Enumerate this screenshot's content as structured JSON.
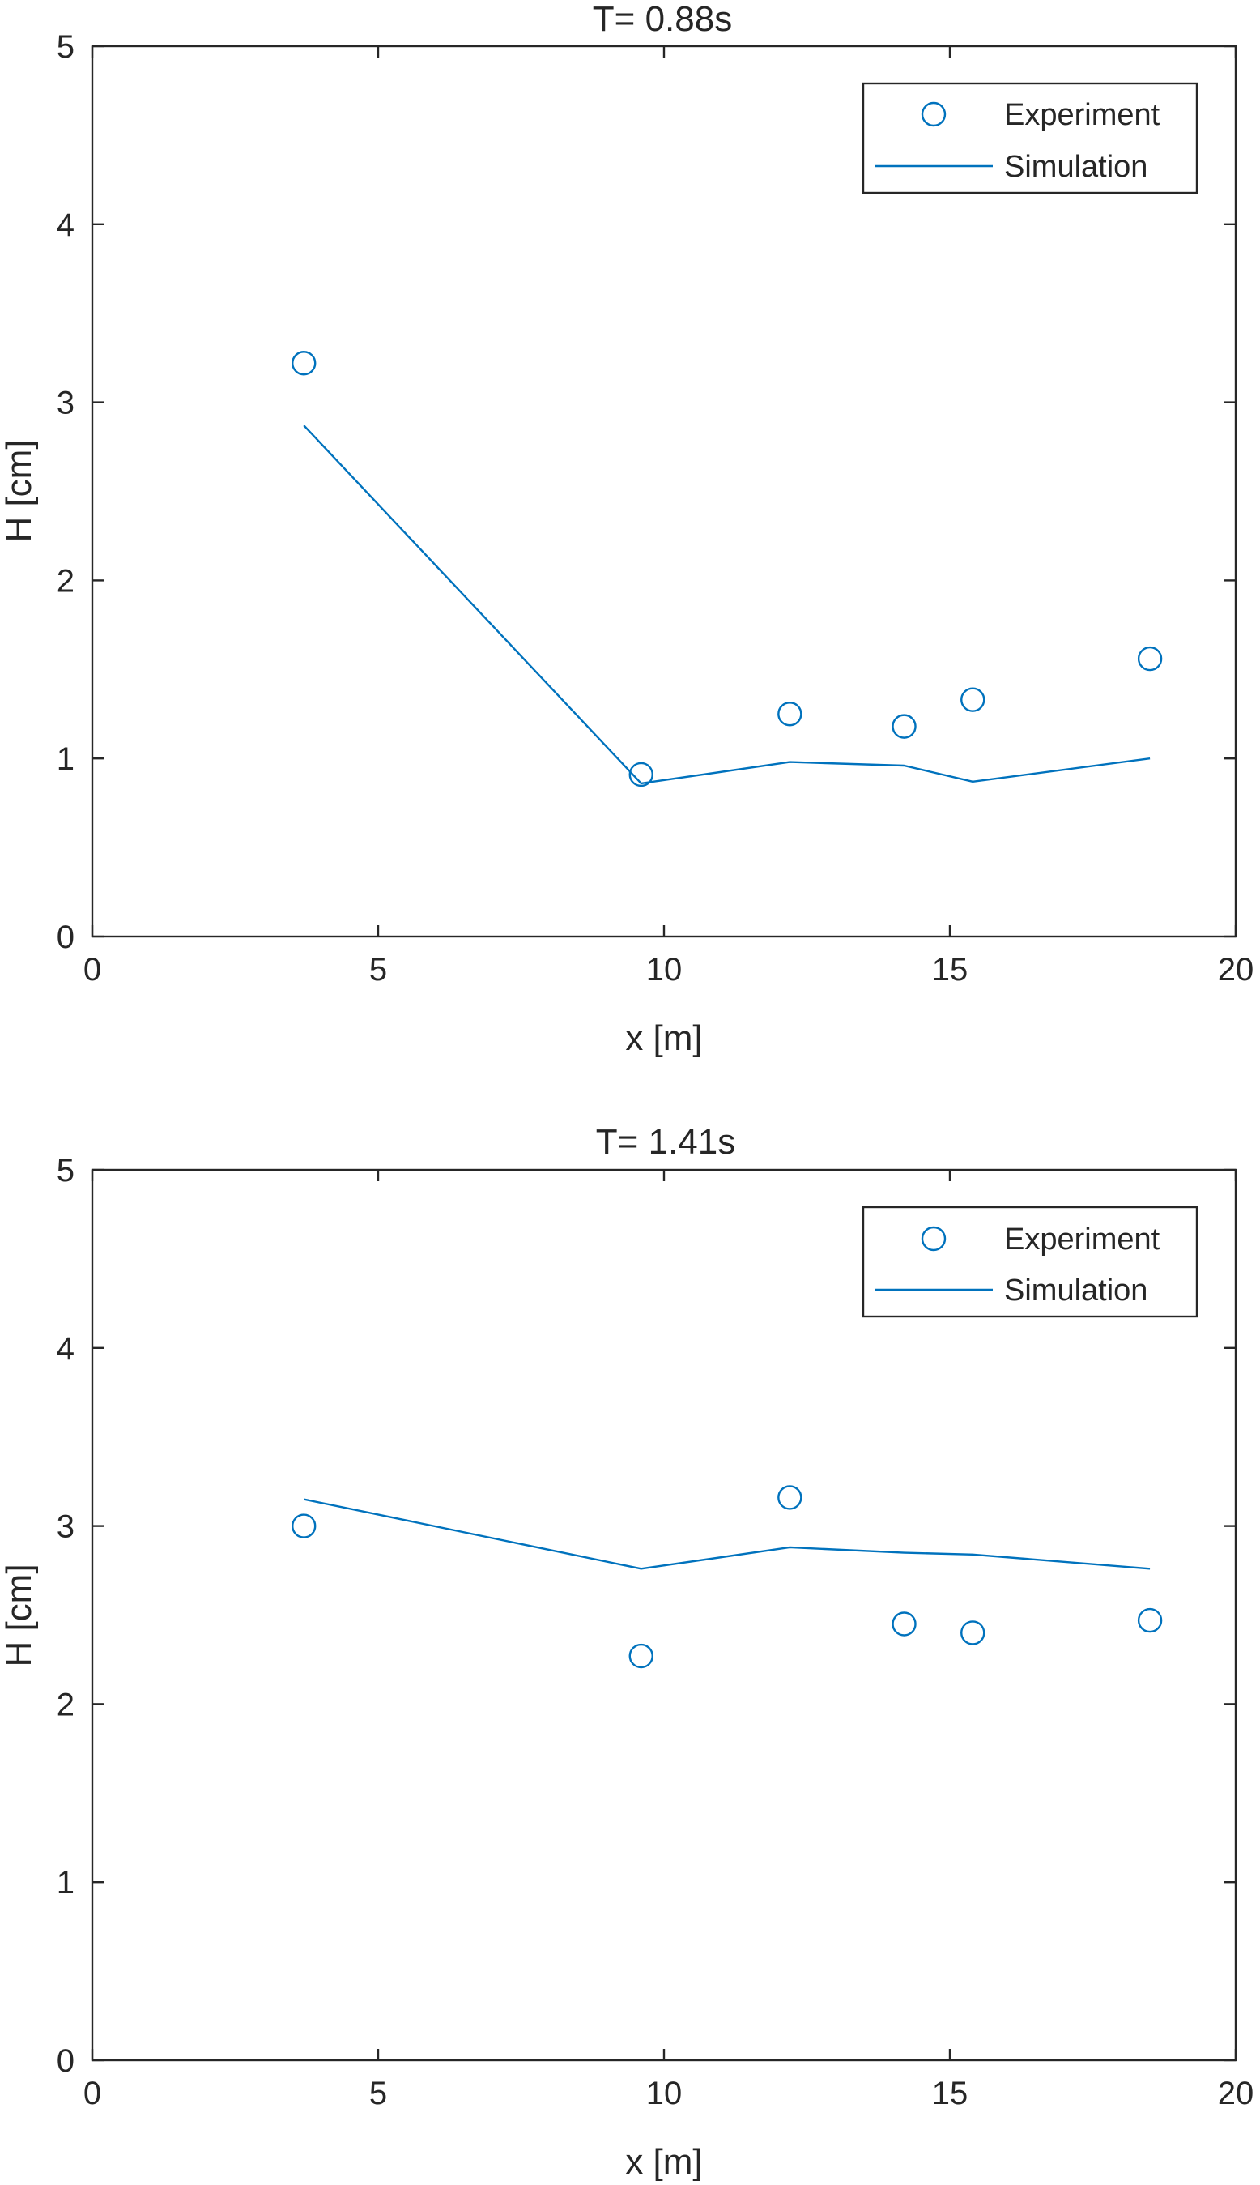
{
  "chart_data": [
    {
      "type": "line",
      "title": "T= 0.88s",
      "xlabel": "x [m]",
      "ylabel": "H [cm]",
      "xlim": [
        0,
        20
      ],
      "ylim": [
        0,
        5
      ],
      "xticks": [
        "0",
        "5",
        "10",
        "15",
        "20"
      ],
      "yticks": [
        "0",
        "1",
        "2",
        "3",
        "4",
        "5"
      ],
      "legend_position": "top-right",
      "grid": false,
      "series": [
        {
          "name": "Experiment",
          "style": "markers-circle",
          "color": "#0072BD",
          "x": [
            3.7,
            9.6,
            12.2,
            14.2,
            15.4,
            18.5
          ],
          "y": [
            3.22,
            0.91,
            1.25,
            1.18,
            1.33,
            1.56
          ]
        },
        {
          "name": "Simulation",
          "style": "line",
          "color": "#0072BD",
          "x": [
            3.7,
            9.6,
            12.2,
            14.2,
            15.4,
            18.5
          ],
          "y": [
            2.87,
            0.86,
            0.98,
            0.96,
            0.87,
            1.0
          ]
        }
      ]
    },
    {
      "type": "line",
      "title": "T= 1.41s",
      "xlabel": "x [m]",
      "ylabel": "H [cm]",
      "xlim": [
        0,
        20
      ],
      "ylim": [
        0,
        5
      ],
      "xticks": [
        "0",
        "5",
        "10",
        "15",
        "20"
      ],
      "yticks": [
        "0",
        "1",
        "2",
        "3",
        "4",
        "5"
      ],
      "legend_position": "top-right",
      "grid": false,
      "series": [
        {
          "name": "Experiment",
          "style": "markers-circle",
          "color": "#0072BD",
          "x": [
            3.7,
            9.6,
            12.2,
            14.2,
            15.4,
            18.5
          ],
          "y": [
            3.0,
            2.27,
            3.16,
            2.45,
            2.4,
            2.47
          ]
        },
        {
          "name": "Simulation",
          "style": "line",
          "color": "#0072BD",
          "x": [
            3.7,
            9.6,
            12.2,
            14.2,
            15.4,
            18.5
          ],
          "y": [
            3.15,
            2.76,
            2.88,
            2.85,
            2.84,
            2.76
          ]
        }
      ]
    }
  ]
}
